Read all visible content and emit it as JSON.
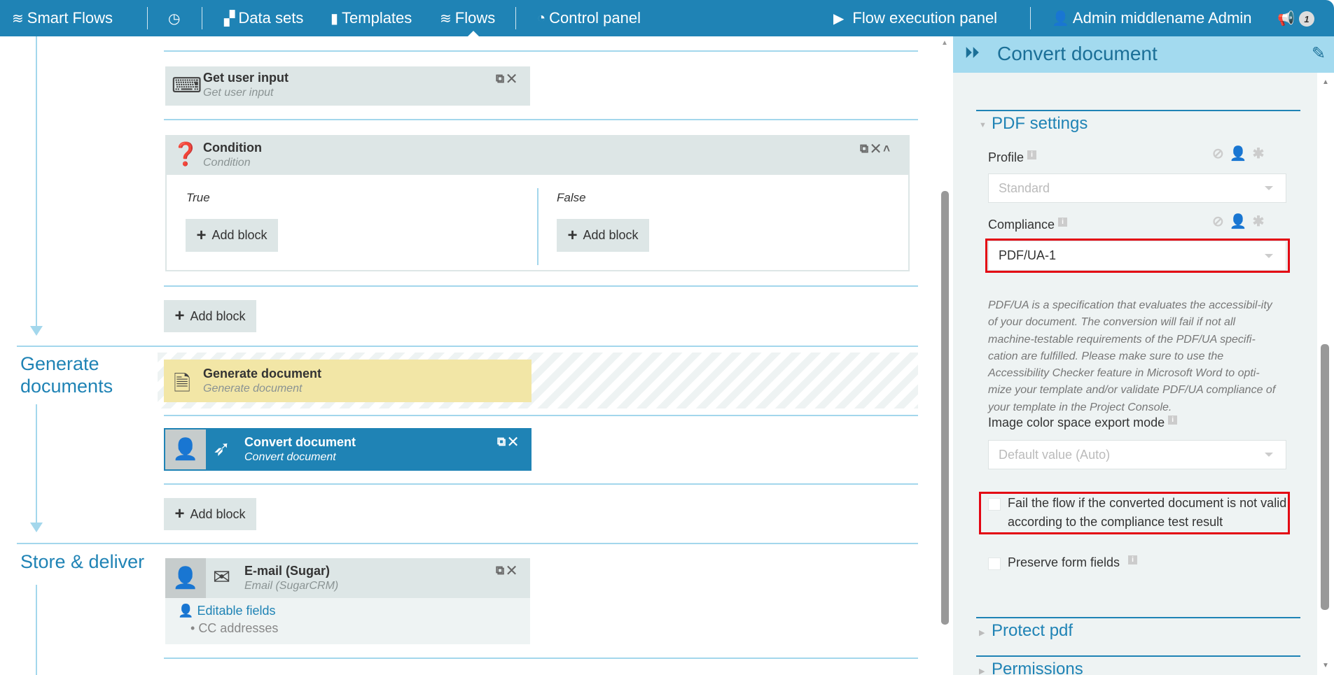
{
  "topbar": {
    "brand": "Smart Flows",
    "items": [
      {
        "label": "Data sets",
        "icon": "dataset-icon"
      },
      {
        "label": "Templates",
        "icon": "file-icon"
      },
      {
        "label": "Flows",
        "icon": "waves-icon",
        "active": true
      },
      {
        "label": "Control panel",
        "icon": "gauge-icon"
      }
    ],
    "history_icon": "clock-icon",
    "execution_panel": "Flow execution panel",
    "user": "Admin middlename Admin",
    "notifications_count": "1"
  },
  "flow": {
    "stages": [
      {
        "label": "Generate documents"
      },
      {
        "label": "Store & deliver"
      }
    ],
    "blocks": {
      "get_user_input": {
        "title": "Get user input",
        "subtitle": "Get user input"
      },
      "condition": {
        "title": "Condition",
        "subtitle": "Condition",
        "true_label": "True",
        "false_label": "False"
      },
      "generate_document": {
        "title": "Generate document",
        "subtitle": "Generate document"
      },
      "convert_document": {
        "title": "Convert document",
        "subtitle": "Convert document"
      },
      "email": {
        "title": "E-mail (Sugar)",
        "subtitle": "Email (SugarCRM)",
        "editable_label": "Editable fields",
        "editable_items": [
          "CC addresses"
        ]
      }
    },
    "add_block_label": "Add block"
  },
  "panel": {
    "title": "Convert document",
    "section_pdf": "PDF settings",
    "profile_label": "Profile",
    "profile_value": "Standard",
    "compliance_label": "Compliance",
    "compliance_value": "PDF/UA-1",
    "description": "PDF/UA is a specification that evaluates the accessibil-ity of your document. The conversion will fail if not all machine-testable requirements of the PDF/UA specifi-cation are fulfilled. Please make sure to use the Accessibility Checker feature in Microsoft Word to opti-mize your template and/or validate PDF/UA compliance of your template in the Project Console.",
    "image_color_label": "Image color space export mode",
    "image_color_value": "Default value (Auto)",
    "fail_flow_label": "Fail the flow if the converted document is not valid according to the compliance test result",
    "fail_flow_checked": false,
    "preserve_label": "Preserve form fields",
    "preserve_checked": false,
    "section_protect": "Protect pdf",
    "section_permissions": "Permissions"
  },
  "colors": {
    "brand": "#1f83b5",
    "panel_header": "#a3daef",
    "highlight": "#e30613",
    "generate_block": "#f2e6a6"
  }
}
